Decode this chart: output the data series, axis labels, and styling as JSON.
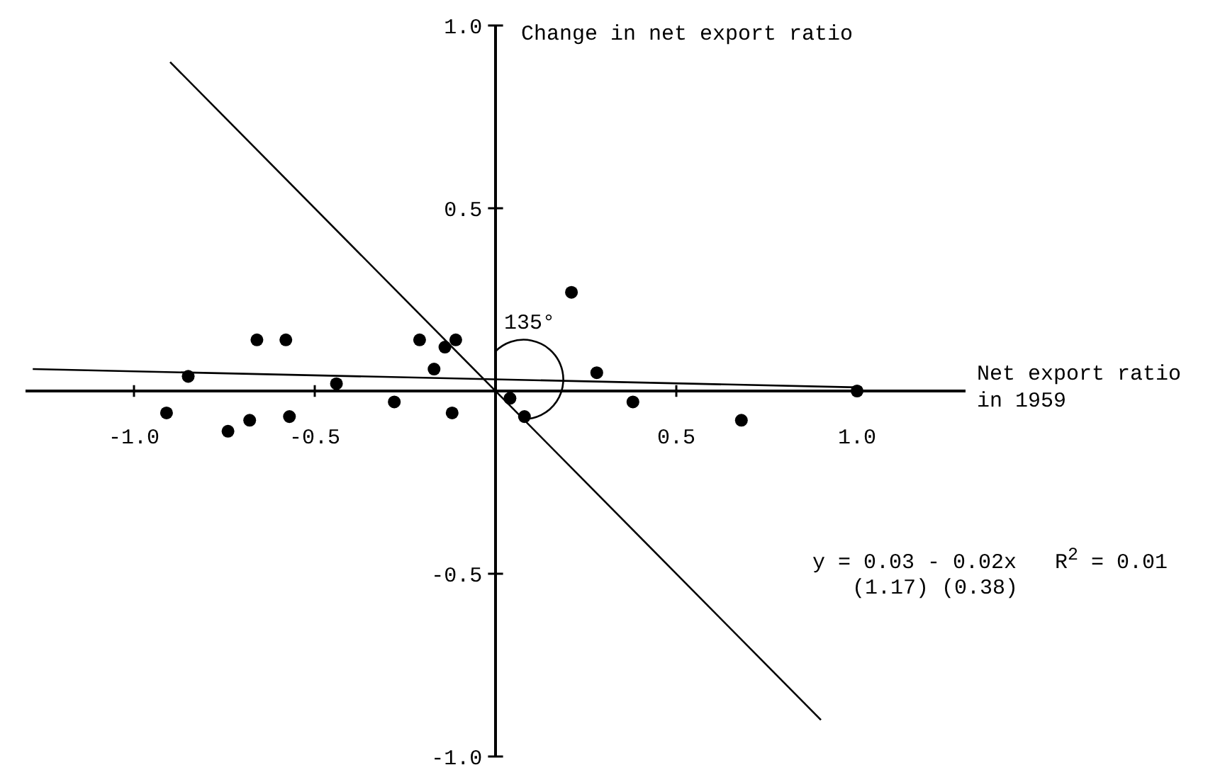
{
  "chart_data": {
    "type": "scatter",
    "xlabel": "Net export ratio in 1959",
    "ylabel": "Change in net export ratio",
    "xlim": [
      -1.3,
      1.3
    ],
    "ylim": [
      -1.0,
      1.0
    ],
    "xticks": [
      {
        "value": -1.0,
        "label": "-1.0"
      },
      {
        "value": -0.5,
        "label": "-0.5"
      },
      {
        "value": 0.5,
        "label": "0.5"
      },
      {
        "value": 1.0,
        "label": "1.0"
      }
    ],
    "yticks": [
      {
        "value": -1.0,
        "label": "-1.0"
      },
      {
        "value": -0.5,
        "label": "-0.5"
      },
      {
        "value": 0.5,
        "label": "0.5"
      },
      {
        "value": 1.0,
        "label": "1.0"
      }
    ],
    "grid": false,
    "legend": false,
    "marker": "circle",
    "series": [
      {
        "color": "#000000",
        "x": [
          -0.85,
          -0.91,
          -0.74,
          -0.68,
          -0.66,
          -0.58,
          -0.57,
          -0.44,
          -0.28,
          -0.21,
          -0.17,
          -0.14,
          -0.11,
          -0.12,
          0.04,
          0.08,
          0.21,
          0.28,
          0.38,
          0.68,
          1.0
        ],
        "values": [
          0.04,
          -0.06,
          -0.11,
          -0.08,
          0.14,
          0.14,
          -0.07,
          0.02,
          -0.03,
          0.14,
          0.06,
          0.12,
          0.14,
          -0.06,
          -0.02,
          -0.07,
          0.27,
          0.05,
          -0.03,
          -0.08,
          0.0
        ]
      },
      {
        "type": "line",
        "marker": "none",
        "color": "#000000",
        "x": [
          -1.28,
          1.0
        ],
        "values": [
          0.06,
          0.01
        ]
      },
      {
        "type": "line",
        "marker": "none",
        "color": "#000000",
        "x": [
          -0.9,
          0.9
        ],
        "values": [
          0.9,
          -0.9
        ]
      }
    ],
    "annotations": [
      {
        "text": "135°",
        "x": 0,
        "y": 0
      },
      "y = 0.03 - 0.02x   R$^{2}$ = 0.01",
      "(1.17) (0.38)"
    ]
  }
}
